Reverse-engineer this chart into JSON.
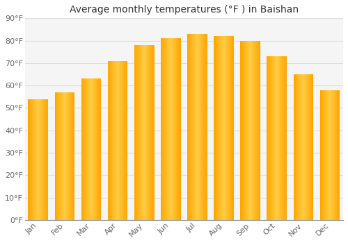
{
  "title": "Average monthly temperatures (°F ) in Baishan",
  "months": [
    "Jan",
    "Feb",
    "Mar",
    "Apr",
    "May",
    "Jun",
    "Jul",
    "Aug",
    "Sep",
    "Oct",
    "Nov",
    "Dec"
  ],
  "values": [
    54,
    57,
    63,
    71,
    78,
    81,
    83,
    82,
    80,
    73,
    65,
    58
  ],
  "bar_color_left": "#FFA500",
  "bar_color_center": "#FFCC44",
  "bar_color_right": "#FFA500",
  "background_color": "#FFFFFF",
  "plot_bg_color": "#F5F5F5",
  "grid_color": "#DDDDDD",
  "ylim": [
    0,
    90
  ],
  "yticks": [
    0,
    10,
    20,
    30,
    40,
    50,
    60,
    70,
    80,
    90
  ],
  "ytick_labels": [
    "0°F",
    "10°F",
    "20°F",
    "30°F",
    "40°F",
    "50°F",
    "60°F",
    "70°F",
    "80°F",
    "90°F"
  ],
  "title_fontsize": 10,
  "tick_fontsize": 8,
  "bar_width": 0.75
}
